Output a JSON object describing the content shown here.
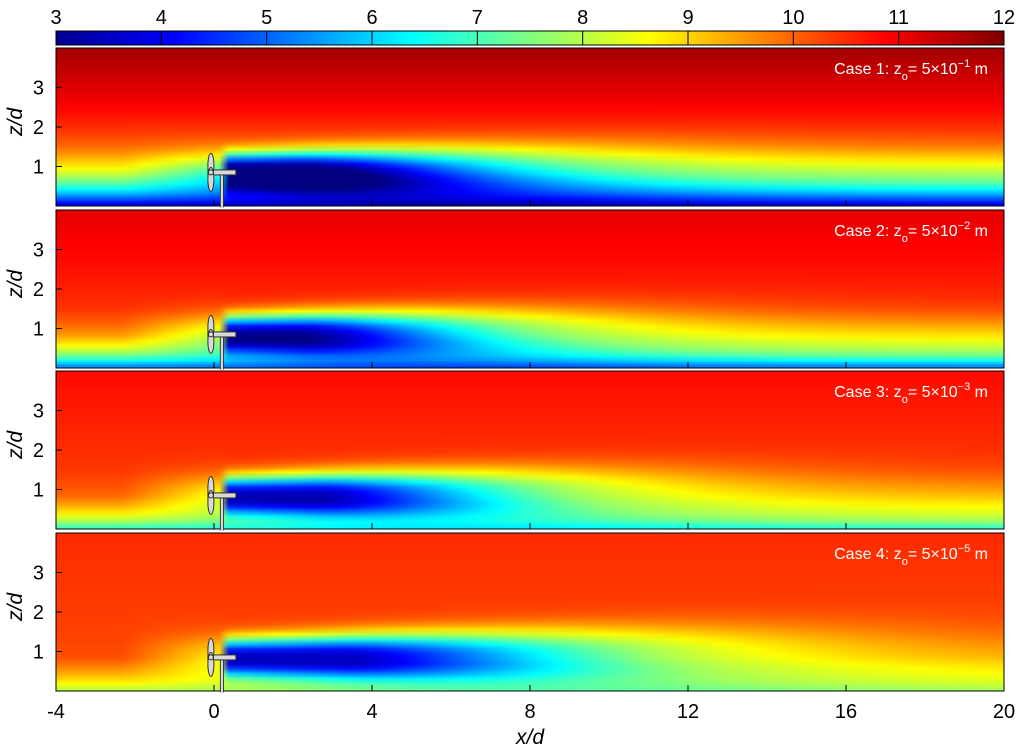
{
  "chart_data": {
    "type": "heatmap",
    "colorbar": {
      "ticks": [
        "3",
        "4",
        "5",
        "6",
        "7",
        "8",
        "9",
        "10",
        "11",
        "12"
      ],
      "range": [
        3,
        12
      ],
      "colormap": "jet"
    },
    "x_axis": {
      "label": "x/d",
      "ticks": [
        "-4",
        "0",
        "4",
        "8",
        "12",
        "16",
        "20"
      ],
      "range": [
        -4,
        20
      ]
    },
    "y_axis": {
      "label": "z/d",
      "ticks": [
        "1",
        "2",
        "3"
      ],
      "range": [
        0,
        4
      ]
    },
    "panels": [
      {
        "label": {
          "prefix": "Case 1: z",
          "sub": "o",
          "eq": "= 5×10",
          "exp": "−1",
          "unit": " m"
        },
        "z0_m": 0.5,
        "field": {
          "freestream_top": 11.7,
          "freestream_mid": 10.5,
          "speed_at_hub": 9.8,
          "ground_speed": 3.5,
          "boundary_layer_height": 0.6,
          "wake_min": 3.6,
          "wake_core_length": 4.5,
          "recovery_length": 10,
          "recovered_min": 7.3
        }
      },
      {
        "label": {
          "prefix": "Case 2: z",
          "sub": "o",
          "eq": "= 5×10",
          "exp": "−2",
          "unit": " m"
        },
        "z0_m": 0.05,
        "field": {
          "freestream_top": 11.1,
          "freestream_mid": 10.5,
          "speed_at_hub": 10,
          "ground_speed": 4.8,
          "boundary_layer_height": 0.35,
          "wake_min": 3.6,
          "wake_core_length": 4.5,
          "recovery_length": 10,
          "recovered_min": 7.5
        }
      },
      {
        "label": {
          "prefix": "Case 3: z",
          "sub": "o",
          "eq": "= 5×10",
          "exp": "−3",
          "unit": " m"
        },
        "z0_m": 0.005,
        "field": {
          "freestream_top": 10.8,
          "freestream_mid": 10.4,
          "speed_at_hub": 10.1,
          "ground_speed": 6.5,
          "boundary_layer_height": 0.25,
          "wake_min": 3.6,
          "wake_core_length": 5.5,
          "recovery_length": 11,
          "recovered_min": 7.6
        }
      },
      {
        "label": {
          "prefix": "Case 4: z",
          "sub": "o",
          "eq": "= 5×10",
          "exp": "−5",
          "unit": " m"
        },
        "z0_m": 5e-05,
        "field": {
          "freestream_top": 10.5,
          "freestream_mid": 10.3,
          "speed_at_hub": 10.2,
          "ground_speed": 7.8,
          "boundary_layer_height": 0.15,
          "wake_min": 3.6,
          "wake_core_length": 7,
          "recovery_length": 14,
          "recovered_min": 7.8
        }
      }
    ],
    "turbine": {
      "x": 0.2,
      "hub_height": 0.85,
      "rotor_radius": 0.5
    }
  }
}
